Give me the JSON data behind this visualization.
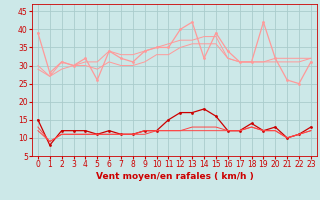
{
  "xlabel": "Vent moyen/en rafales ( km/h )",
  "bg_color": "#cce8e8",
  "grid_color": "#aacccc",
  "xlim": [
    -0.5,
    23.5
  ],
  "ylim": [
    5,
    47
  ],
  "yticks": [
    5,
    10,
    15,
    20,
    25,
    30,
    35,
    40,
    45
  ],
  "xticks": [
    0,
    1,
    2,
    3,
    4,
    5,
    6,
    7,
    8,
    9,
    10,
    11,
    12,
    13,
    14,
    15,
    16,
    17,
    18,
    19,
    20,
    21,
    22,
    23
  ],
  "line1_x": [
    0,
    1,
    2,
    3,
    4,
    5,
    6,
    7,
    8,
    9,
    10,
    11,
    12,
    13,
    14,
    15,
    16,
    17,
    18,
    19,
    20,
    21,
    22,
    23
  ],
  "line1_y": [
    39,
    28,
    31,
    30,
    32,
    26,
    34,
    32,
    31,
    34,
    35,
    35,
    40,
    42,
    32,
    39,
    34,
    31,
    31,
    42,
    32,
    26,
    25,
    31
  ],
  "line2_x": [
    0,
    1,
    2,
    3,
    4,
    5,
    6,
    7,
    8,
    9,
    10,
    11,
    12,
    13,
    14,
    15,
    16,
    17,
    18,
    19,
    20,
    21,
    22,
    23
  ],
  "line2_y": [
    30,
    27,
    31,
    30,
    31,
    31,
    34,
    33,
    33,
    34,
    35,
    36,
    37,
    37,
    38,
    38,
    32,
    31,
    31,
    31,
    32,
    32,
    32,
    32
  ],
  "line3_x": [
    0,
    1,
    2,
    3,
    4,
    5,
    6,
    7,
    8,
    9,
    10,
    11,
    12,
    13,
    14,
    15,
    16,
    17,
    18,
    19,
    20,
    21,
    22,
    23
  ],
  "line3_y": [
    29,
    27,
    29,
    30,
    30,
    29,
    31,
    30,
    30,
    31,
    33,
    33,
    35,
    36,
    36,
    36,
    32,
    31,
    31,
    31,
    31,
    31,
    31,
    32
  ],
  "line4_x": [
    0,
    1,
    2,
    3,
    4,
    5,
    6,
    7,
    8,
    9,
    10,
    11,
    12,
    13,
    14,
    15,
    16,
    17,
    18,
    19,
    20,
    21,
    22,
    23
  ],
  "line4_y": [
    15,
    8,
    12,
    12,
    12,
    11,
    12,
    11,
    11,
    12,
    12,
    15,
    17,
    17,
    18,
    16,
    12,
    12,
    14,
    12,
    13,
    10,
    11,
    13
  ],
  "line5_x": [
    0,
    1,
    2,
    3,
    4,
    5,
    6,
    7,
    8,
    9,
    10,
    11,
    12,
    13,
    14,
    15,
    16,
    17,
    18,
    19,
    20,
    21,
    22,
    23
  ],
  "line5_y": [
    13,
    9,
    11,
    11,
    11,
    11,
    11,
    11,
    11,
    12,
    12,
    12,
    12,
    13,
    13,
    13,
    12,
    12,
    13,
    12,
    12,
    10,
    11,
    12
  ],
  "line6_x": [
    0,
    1,
    2,
    3,
    4,
    5,
    6,
    7,
    8,
    9,
    10,
    11,
    12,
    13,
    14,
    15,
    16,
    17,
    18,
    19,
    20,
    21,
    22,
    23
  ],
  "line6_y": [
    12,
    9,
    11,
    11,
    11,
    11,
    11,
    11,
    11,
    11,
    12,
    12,
    12,
    12,
    12,
    12,
    12,
    12,
    13,
    12,
    12,
    10,
    11,
    12
  ],
  "light_pink": "#ff9999",
  "dark_red": "#cc0000",
  "medium_red": "#ff4444",
  "tick_color": "#cc0000",
  "xlabel_fontsize": 6.5,
  "tick_fontsize": 5.5,
  "linewidth_thin": 0.7,
  "linewidth_main": 0.9,
  "markersize": 2.0
}
